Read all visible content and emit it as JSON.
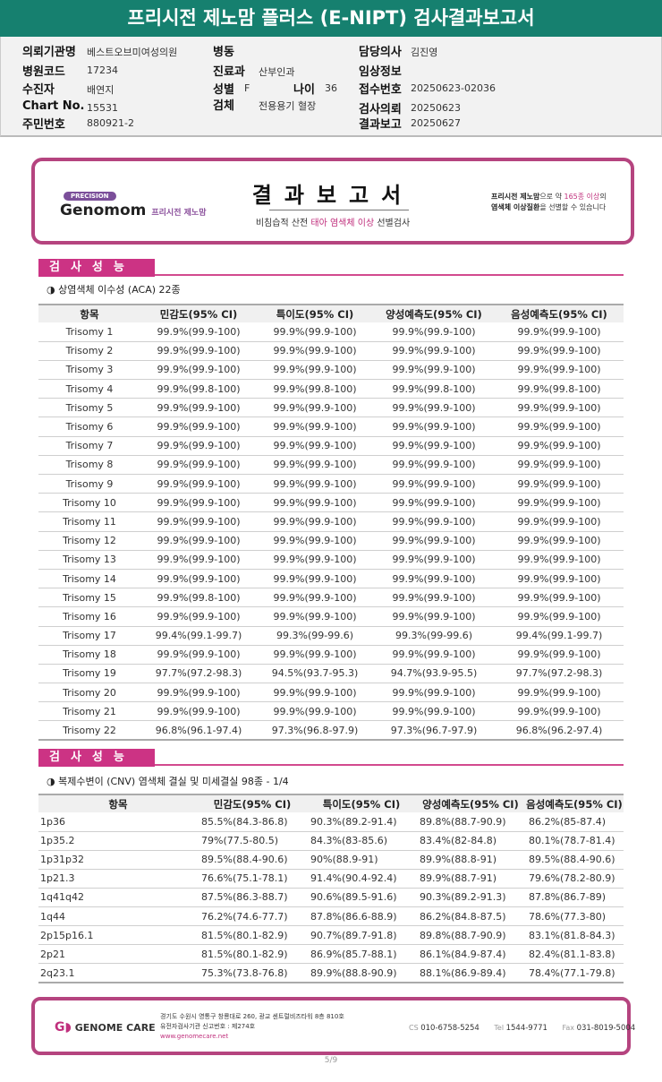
{
  "title": "프리시전 제노맘 플러스 (E-NIPT) 검사결과보고서",
  "patient": [
    {
      "k": "의뢰기관명",
      "v": "베스트오브미여성의원"
    },
    {
      "k": "병원코드",
      "v": "17234"
    },
    {
      "k": "수진자",
      "v": "배연지"
    },
    {
      "k": "Chart No.",
      "v": "15531"
    },
    {
      "k": "주민번호",
      "v": "880921-2"
    },
    {
      "k": "병동",
      "v": ""
    },
    {
      "k": "진료과",
      "v": "산부인과"
    },
    {
      "k": "성별",
      "v": "F"
    },
    {
      "k": "나이",
      "v": "36"
    },
    {
      "k": "검체",
      "v": "전용용기 혈장"
    },
    {
      "k": "담당의사",
      "v": "김진영"
    },
    {
      "k": "임상정보",
      "v": ""
    },
    {
      "k": "접수번호",
      "v": "20250623-02036"
    },
    {
      "k": "검사의뢰",
      "v": "20250623"
    },
    {
      "k": "결과보고",
      "v": "20250627"
    }
  ],
  "banner": {
    "precision": "PRECISION",
    "brand": "Genomom",
    "brand_sub": "프리시전 제노맘",
    "title": "결과보고서",
    "sub_pre": "비침습적 산전 ",
    "sub_hl": "태아 염색체 이상",
    "sub_post": " 선별검사",
    "right1a": "프리시전 제노맘",
    "right1b": "으로 약 ",
    "right1c": "165종 이상",
    "right1d": "의",
    "right2a": "염색체 이상질환",
    "right2b": "을 선별할 수 있습니다"
  },
  "section1": {
    "title": "검사성능",
    "subtitle": "◑ 상염색체 이수성 (ACA) 22종"
  },
  "columns": [
    "항목",
    "민감도(95% CI)",
    "특이도(95% CI)",
    "양성예측도(95% CI)",
    "음성예측도(95% CI)"
  ],
  "table1": [
    [
      "Trisomy 1",
      "99.9%(99.9-100)",
      "99.9%(99.9-100)",
      "99.9%(99.9-100)",
      "99.9%(99.9-100)"
    ],
    [
      "Trisomy 2",
      "99.9%(99.9-100)",
      "99.9%(99.9-100)",
      "99.9%(99.9-100)",
      "99.9%(99.9-100)"
    ],
    [
      "Trisomy 3",
      "99.9%(99.9-100)",
      "99.9%(99.9-100)",
      "99.9%(99.9-100)",
      "99.9%(99.9-100)"
    ],
    [
      "Trisomy 4",
      "99.9%(99.8-100)",
      "99.9%(99.8-100)",
      "99.9%(99.8-100)",
      "99.9%(99.8-100)"
    ],
    [
      "Trisomy 5",
      "99.9%(99.9-100)",
      "99.9%(99.9-100)",
      "99.9%(99.9-100)",
      "99.9%(99.9-100)"
    ],
    [
      "Trisomy 6",
      "99.9%(99.9-100)",
      "99.9%(99.9-100)",
      "99.9%(99.9-100)",
      "99.9%(99.9-100)"
    ],
    [
      "Trisomy 7",
      "99.9%(99.9-100)",
      "99.9%(99.9-100)",
      "99.9%(99.9-100)",
      "99.9%(99.9-100)"
    ],
    [
      "Trisomy 8",
      "99.9%(99.9-100)",
      "99.9%(99.9-100)",
      "99.9%(99.9-100)",
      "99.9%(99.9-100)"
    ],
    [
      "Trisomy 9",
      "99.9%(99.9-100)",
      "99.9%(99.9-100)",
      "99.9%(99.9-100)",
      "99.9%(99.9-100)"
    ],
    [
      "Trisomy 10",
      "99.9%(99.9-100)",
      "99.9%(99.9-100)",
      "99.9%(99.9-100)",
      "99.9%(99.9-100)"
    ],
    [
      "Trisomy 11",
      "99.9%(99.9-100)",
      "99.9%(99.9-100)",
      "99.9%(99.9-100)",
      "99.9%(99.9-100)"
    ],
    [
      "Trisomy 12",
      "99.9%(99.9-100)",
      "99.9%(99.9-100)",
      "99.9%(99.9-100)",
      "99.9%(99.9-100)"
    ],
    [
      "Trisomy 13",
      "99.9%(99.9-100)",
      "99.9%(99.9-100)",
      "99.9%(99.9-100)",
      "99.9%(99.9-100)"
    ],
    [
      "Trisomy 14",
      "99.9%(99.9-100)",
      "99.9%(99.9-100)",
      "99.9%(99.9-100)",
      "99.9%(99.9-100)"
    ],
    [
      "Trisomy 15",
      "99.9%(99.8-100)",
      "99.9%(99.9-100)",
      "99.9%(99.9-100)",
      "99.9%(99.9-100)"
    ],
    [
      "Trisomy 16",
      "99.9%(99.9-100)",
      "99.9%(99.9-100)",
      "99.9%(99.9-100)",
      "99.9%(99.9-100)"
    ],
    [
      "Trisomy 17",
      "99.4%(99.1-99.7)",
      "99.3%(99-99.6)",
      "99.3%(99-99.6)",
      "99.4%(99.1-99.7)"
    ],
    [
      "Trisomy 18",
      "99.9%(99.9-100)",
      "99.9%(99.9-100)",
      "99.9%(99.9-100)",
      "99.9%(99.9-100)"
    ],
    [
      "Trisomy 19",
      "97.7%(97.2-98.3)",
      "94.5%(93.7-95.3)",
      "94.7%(93.9-95.5)",
      "97.7%(97.2-98.3)"
    ],
    [
      "Trisomy 20",
      "99.9%(99.9-100)",
      "99.9%(99.9-100)",
      "99.9%(99.9-100)",
      "99.9%(99.9-100)"
    ],
    [
      "Trisomy 21",
      "99.9%(99.9-100)",
      "99.9%(99.9-100)",
      "99.9%(99.9-100)",
      "99.9%(99.9-100)"
    ],
    [
      "Trisomy 22",
      "96.8%(96.1-97.4)",
      "97.3%(96.8-97.9)",
      "97.3%(96.7-97.9)",
      "96.8%(96.2-97.4)"
    ]
  ],
  "section2": {
    "title": "검사성능",
    "subtitle": "◑ 복제수변이 (CNV) 염색체 결실 및 미세결실 98종 - 1/4"
  },
  "table2": [
    [
      "1p36",
      "85.5%(84.3-86.8)",
      "90.3%(89.2-91.4)",
      "89.8%(88.7-90.9)",
      "86.2%(85-87.4)"
    ],
    [
      "1p35.2",
      "79%(77.5-80.5)",
      "84.3%(83-85.6)",
      "83.4%(82-84.8)",
      "80.1%(78.7-81.4)"
    ],
    [
      "1p31p32",
      "89.5%(88.4-90.6)",
      "90%(88.9-91)",
      "89.9%(88.8-91)",
      "89.5%(88.4-90.6)"
    ],
    [
      "1p21.3",
      "76.6%(75.1-78.1)",
      "91.4%(90.4-92.4)",
      "89.9%(88.7-91)",
      "79.6%(78.2-80.9)"
    ],
    [
      "1q41q42",
      "87.5%(86.3-88.7)",
      "90.6%(89.5-91.6)",
      "90.3%(89.2-91.3)",
      "87.8%(86.7-89)"
    ],
    [
      "1q44",
      "76.2%(74.6-77.7)",
      "87.8%(86.6-88.9)",
      "86.2%(84.8-87.5)",
      "78.6%(77.3-80)"
    ],
    [
      "2p15p16.1",
      "81.5%(80.1-82.9)",
      "90.7%(89.7-91.8)",
      "89.8%(88.7-90.9)",
      "83.1%(81.8-84.3)"
    ],
    [
      "2p21",
      "81.5%(80.1-82.9)",
      "86.9%(85.7-88.1)",
      "86.1%(84.9-87.4)",
      "82.4%(81.1-83.8)"
    ],
    [
      "2q23.1",
      "75.3%(73.8-76.8)",
      "89.9%(88.8-90.9)",
      "88.1%(86.9-89.4)",
      "78.4%(77.1-79.8)"
    ]
  ],
  "footer": {
    "logo": "GENOME CARE",
    "addr1": "경기도 수원시 영통구 창룡대로 260, 광교 센트럴비즈타워 8층 810호",
    "addr2": "유전자검사기관 신고번호 : 제274호",
    "web": "www.genomecare.net",
    "cs_label": "CS",
    "cs": "010-6758-5254",
    "tel_label": "Tel",
    "tel": "1544-9771",
    "fax_label": "Fax",
    "fax": "031-8019-5004"
  },
  "page": "5/9",
  "colors": {
    "header": "#16806f",
    "accent": "#cc3384",
    "border": "#b5447f"
  }
}
